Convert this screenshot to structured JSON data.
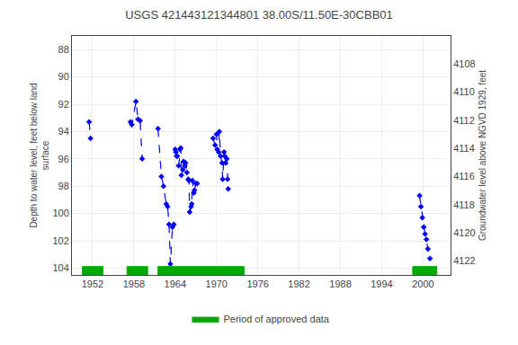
{
  "chart_data": {
    "type": "line",
    "title": "USGS 421443121344801 38.00S/11.50E-30CBB01",
    "y_label": "Depth to water level, feet below land\nsurface",
    "y2_label": "Groundwater level above NGVD 1929, feet",
    "xlim": [
      1949,
      2004
    ],
    "xticks": [
      1952,
      1958,
      1964,
      1970,
      1976,
      1982,
      1988,
      1994,
      2000
    ],
    "ylim": [
      104.5,
      87
    ],
    "yticks": [
      88,
      90,
      92,
      94,
      96,
      98,
      100,
      102,
      104
    ],
    "y2lim": [
      4123,
      4106
    ],
    "y2ticks": [
      4108,
      4110,
      4112,
      4114,
      4116,
      4118,
      4120,
      4122
    ],
    "grid": true,
    "background_color": "#ffffff",
    "x": [
      1951.5,
      1951.7,
      null,
      1957.5,
      1957.7,
      1958.3,
      1958.6,
      1958.9,
      1959.2,
      null,
      1961.5,
      1962.0,
      1962.3,
      1962.7,
      1962.9,
      1963.1,
      1963.3,
      1963.6,
      1963.8,
      null,
      1964.0,
      1964.1,
      1964.2,
      1964.3,
      1964.5,
      1964.7,
      1964.8,
      1964.9,
      1965.1,
      1965.2,
      1965.4,
      1965.5,
      1965.7,
      1965.9,
      1966.0,
      1966.1,
      1966.3,
      1966.4,
      1966.5,
      1966.7,
      1966.8,
      1967.0,
      1967.2,
      null,
      1969.5,
      1969.8,
      1970.0,
      1970.1,
      1970.3,
      1970.4,
      1970.6,
      1970.8,
      1970.9,
      1971.1,
      1971.2,
      1971.3,
      1971.5,
      1971.6,
      1971.7,
      null,
      1999.5,
      1999.7,
      1999.9,
      2000.1,
      2000.3,
      2000.5,
      2000.7,
      2001.0
    ],
    "series": [
      {
        "color": "#0000ff",
        "marker": "diamond",
        "line_style": "dashed",
        "values": [
          93.3,
          94.5,
          null,
          93.3,
          93.5,
          91.8,
          93.1,
          93.2,
          96.0,
          null,
          93.8,
          97.3,
          98.0,
          99.3,
          99.5,
          100.8,
          103.7,
          101.0,
          100.8,
          null,
          95.3,
          95.5,
          95.8,
          95.8,
          96.5,
          95.3,
          95.2,
          97.2,
          96.8,
          96.2,
          96.5,
          96.3,
          97.0,
          97.5,
          97.6,
          99.9,
          99.5,
          99.3,
          97.6,
          98.5,
          98.3,
          97.8,
          97.8,
          null,
          94.5,
          95.0,
          94.2,
          95.3,
          95.5,
          94.0,
          95.8,
          96.3,
          97.5,
          95.5,
          95.8,
          96.3,
          96.0,
          97.5,
          98.2,
          null,
          98.7,
          99.5,
          100.3,
          101.0,
          101.5,
          101.9,
          102.6,
          103.3
        ]
      }
    ],
    "periods": {
      "name": "Period of approved data",
      "color": "#00aa00",
      "ranges": [
        [
          1950.5,
          1953.5
        ],
        [
          1957.0,
          1960.0
        ],
        [
          1961.5,
          1974.0
        ],
        [
          1998.5,
          2002.0
        ]
      ]
    },
    "legend": "bottom"
  }
}
